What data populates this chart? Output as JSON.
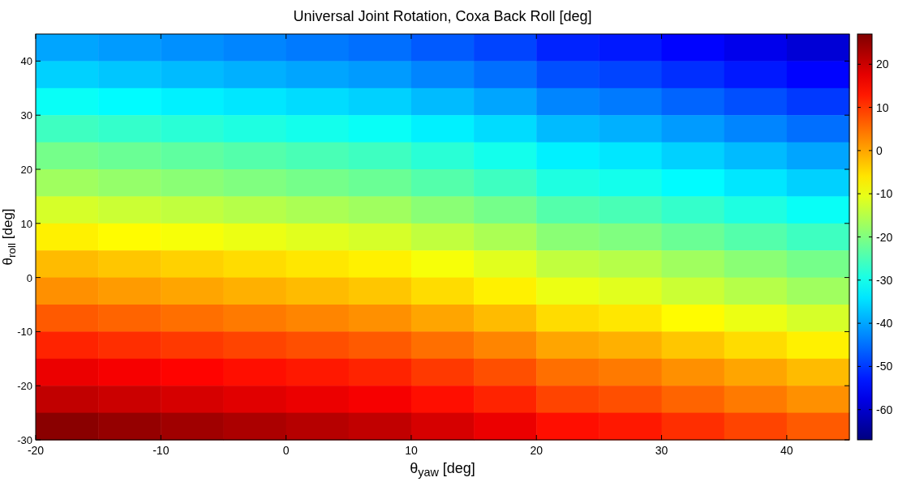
{
  "chart_data": {
    "type": "heatmap",
    "title": "Universal Joint Rotation, Coxa Back Roll [deg]",
    "xlabel": "θ$_{yaw}$ [deg]",
    "ylabel": "θ$_{roll}$ [deg]",
    "xlim": [
      -20,
      45
    ],
    "ylim": [
      -30,
      45
    ],
    "xticks": [
      -20,
      -10,
      0,
      10,
      20,
      30,
      40
    ],
    "yticks": [
      -30,
      -20,
      -10,
      0,
      10,
      20,
      30,
      40
    ],
    "clim": [
      -67,
      27
    ],
    "cticks": [
      -60,
      -50,
      -40,
      -30,
      -20,
      -10,
      0,
      10,
      20
    ],
    "cells": [
      [
        -40,
        -41,
        -42,
        -43,
        -44,
        -45,
        -47,
        -49,
        -52,
        -53,
        -55,
        -57,
        -59
      ],
      [
        -36,
        -37,
        -38,
        -39,
        -40,
        -41,
        -43,
        -45,
        -48,
        -49,
        -51,
        -53,
        -55
      ],
      [
        -31,
        -32,
        -33,
        -34,
        -35,
        -36,
        -38,
        -40,
        -43,
        -44,
        -46,
        -48,
        -50
      ],
      [
        -26,
        -27,
        -28,
        -29,
        -30,
        -31,
        -33,
        -35,
        -38,
        -39,
        -41,
        -43,
        -45
      ],
      [
        -21,
        -22,
        -23,
        -24,
        -25,
        -26,
        -28,
        -30,
        -33,
        -34,
        -36,
        -38,
        -40
      ],
      [
        -17,
        -18,
        -19,
        -20,
        -21,
        -22,
        -24,
        -26,
        -29,
        -30,
        -32,
        -34,
        -36
      ],
      [
        -12,
        -13,
        -14,
        -15,
        -16,
        -17,
        -19,
        -21,
        -24,
        -25,
        -27,
        -29,
        -31
      ],
      [
        -7,
        -8,
        -9,
        -10,
        -11,
        -12,
        -14,
        -16,
        -19,
        -20,
        -22,
        -24,
        -26
      ],
      [
        -2,
        -3,
        -4,
        -5,
        -6,
        -7,
        -9,
        -11,
        -14,
        -15,
        -17,
        -19,
        -21
      ],
      [
        2,
        1,
        0,
        -1,
        -2,
        -3,
        -5,
        -7,
        -10,
        -11,
        -13,
        -15,
        -17
      ],
      [
        7,
        6,
        5,
        4,
        3,
        2,
        0,
        -2,
        -5,
        -6,
        -8,
        -10,
        -12
      ],
      [
        12,
        11,
        10,
        9,
        8,
        7,
        5,
        3,
        0,
        -1,
        -3,
        -5,
        -7
      ],
      [
        17,
        16,
        15,
        14,
        13,
        12,
        10,
        8,
        5,
        4,
        2,
        0,
        -2
      ],
      [
        21,
        20,
        19,
        18,
        17,
        16,
        14,
        12,
        9,
        8,
        6,
        4,
        2
      ],
      [
        26,
        25,
        24,
        23,
        22,
        21,
        19,
        17,
        14,
        13,
        11,
        9,
        7
      ]
    ]
  }
}
